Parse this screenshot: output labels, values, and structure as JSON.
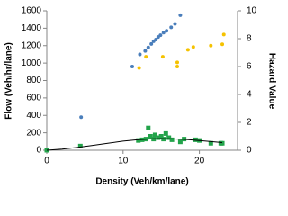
{
  "chart_data": {
    "type": "scatter",
    "xlabel": "Density (Veh/km/lane)",
    "ylabel": "Flow (Veh/hr/lane)",
    "y2label": "Hazard Value",
    "xlim": [
      0,
      25
    ],
    "xticks": [
      0,
      10,
      20
    ],
    "ylim": [
      0,
      1600
    ],
    "yticks": [
      0,
      200,
      400,
      600,
      800,
      1000,
      1200,
      1400,
      1600
    ],
    "y2lim": [
      0,
      10
    ],
    "y2ticks": [
      0,
      2,
      4,
      6,
      8,
      10
    ],
    "series": [
      {
        "color": "#4a7ebb",
        "marker": "circle",
        "axis": "y",
        "x": [
          4.5,
          11.2,
          12.2,
          12.9,
          13.3,
          13.7,
          14.0,
          14.3,
          14.6,
          14.9,
          15.3,
          15.7,
          16.3,
          16.8,
          17.5
        ],
        "values": [
          380,
          960,
          1100,
          1140,
          1180,
          1220,
          1250,
          1270,
          1300,
          1320,
          1350,
          1370,
          1410,
          1450,
          1550
        ]
      },
      {
        "color": "#f5c200",
        "marker": "circle",
        "axis": "y2",
        "x": [
          12.1,
          13.0,
          15.2,
          17.1,
          17.1,
          18.5,
          19.2,
          21.5,
          23.0,
          23.2
        ],
        "values": [
          5.9,
          6.7,
          6.7,
          6.0,
          6.3,
          7.2,
          7.4,
          7.5,
          7.6,
          8.3
        ]
      },
      {
        "color": "#22a34a",
        "marker": "square",
        "axis": "y2",
        "x": [
          0,
          4.4,
          12.0,
          12.5,
          13.0,
          13.3,
          13.6,
          14.0,
          14.2,
          14.6,
          15.0,
          15.3,
          15.6,
          16.0,
          16.4,
          17.5,
          18.0,
          19.5,
          20.0,
          21.5,
          22.8,
          23.0
        ],
        "values": [
          0,
          0.3,
          0.7,
          0.75,
          0.8,
          1.6,
          1.0,
          0.8,
          1.1,
          0.9,
          1.0,
          0.8,
          1.2,
          0.9,
          0.75,
          0.6,
          0.8,
          0.75,
          0.7,
          0.5,
          0.5,
          0.5
        ]
      },
      {
        "color": "#000000",
        "marker": "none",
        "axis": "y2",
        "x": [
          0,
          2,
          4,
          6,
          8,
          10,
          12,
          14,
          15,
          16,
          18,
          20,
          22,
          23
        ],
        "values": [
          0,
          0.08,
          0.2,
          0.35,
          0.5,
          0.65,
          0.76,
          0.82,
          0.83,
          0.82,
          0.78,
          0.7,
          0.6,
          0.55
        ]
      }
    ]
  }
}
